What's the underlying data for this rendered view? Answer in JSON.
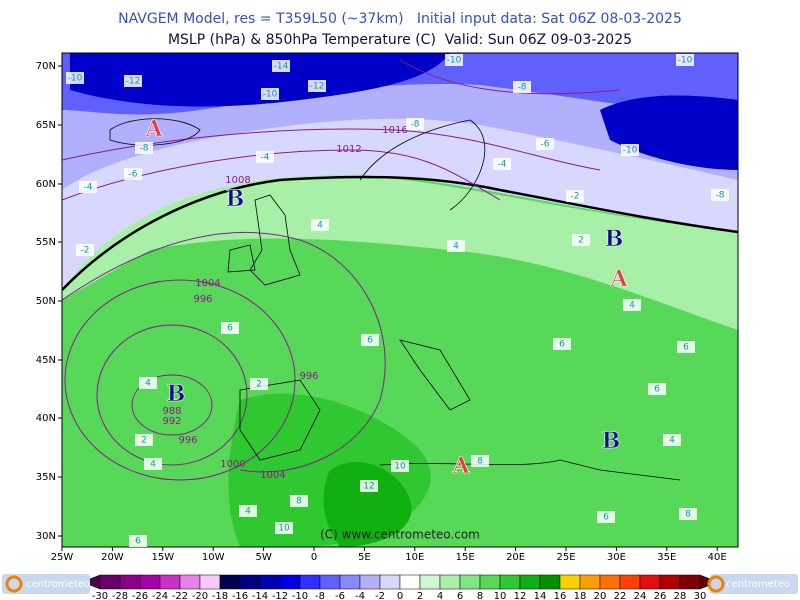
{
  "header": {
    "line1": "NAVGEM Model, res = T359L50 (~37km)   Initial input data: Sat 06Z 08-03-2025",
    "line2": "MSLP (hPa) & 850hPa Temperature (C)  Valid: Sun 06Z 09-03-2025"
  },
  "map": {
    "lat_labels": [
      "70N",
      "65N",
      "60N",
      "55N",
      "50N",
      "45N",
      "40N",
      "35N",
      "30N"
    ],
    "lon_labels": [
      "25W",
      "20W",
      "15W",
      "10W",
      "5W",
      "0",
      "5E",
      "10E",
      "15E",
      "20E",
      "25E",
      "30E",
      "35E",
      "40E"
    ],
    "pressure_centers": [
      "A",
      "B",
      "B",
      "A",
      "B",
      "A",
      "B"
    ],
    "isobar_labels": [
      1016,
      1012,
      1008,
      1004,
      996,
      996,
      988,
      992,
      996,
      1000,
      1004
    ],
    "temperature_labels": [
      -10,
      -12,
      -14,
      -12,
      -10,
      -10,
      -8,
      -10,
      -10,
      -8,
      -8,
      -6,
      -4,
      -4,
      -4,
      -6,
      -2,
      -2,
      2,
      4,
      4,
      6,
      6,
      4,
      2,
      2,
      4,
      10,
      12,
      8,
      10,
      4,
      6,
      8,
      6,
      4,
      6,
      6,
      4,
      6,
      8,
      -8
    ],
    "copyright": "(C) www.centrometeo.com"
  },
  "colorbar": {
    "labels": [
      -30,
      -28,
      -26,
      -24,
      -22,
      -20,
      -18,
      -16,
      -14,
      -12,
      -10,
      -8,
      -6,
      -4,
      -2,
      0,
      2,
      4,
      6,
      8,
      10,
      12,
      14,
      16,
      18,
      20,
      22,
      24,
      26,
      28,
      30
    ],
    "colors": [
      "#4a004a",
      "#6a006a",
      "#8a008a",
      "#a800a8",
      "#c830c8",
      "#e880e8",
      "#f8c8f8",
      "#000050",
      "#000080",
      "#0000b0",
      "#0000e0",
      "#3030ff",
      "#6060ff",
      "#8888ff",
      "#b0b0ff",
      "#d8d8ff",
      "#ffffff",
      "#d0f8d0",
      "#a8f0a8",
      "#80e680",
      "#58d858",
      "#30c830",
      "#10b010",
      "#009000",
      "#ffd000",
      "#ffa000",
      "#ff7000",
      "#ff4000",
      "#e01010",
      "#b00000",
      "#800000",
      "#600000"
    ]
  },
  "logos": {
    "left": "centrometeo",
    "right": "centrometeo"
  }
}
